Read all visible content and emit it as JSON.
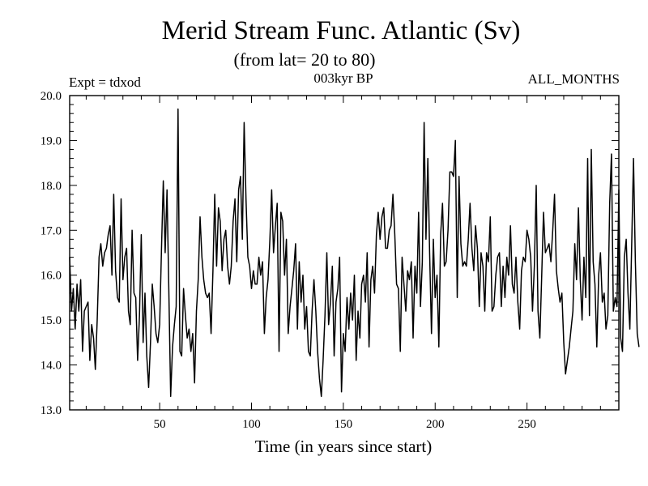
{
  "chart_data": {
    "type": "line",
    "title": "Merid Stream Func. Atlantic (Sv)",
    "subtitle": "(from lat= 20 to 80)",
    "annotations": {
      "left": "Expt = tdxod",
      "center": "003kyr BP",
      "right": "ALL_MONTHS"
    },
    "xlabel": "Time (in years since start)",
    "ylabel": "",
    "xlim": [
      1,
      300
    ],
    "ylim": [
      13.0,
      20.0
    ],
    "x_ticks": [
      50,
      100,
      150,
      200,
      250
    ],
    "y_ticks": [
      13.0,
      14.0,
      15.0,
      16.0,
      17.0,
      18.0,
      19.0,
      20.0
    ],
    "grid": false,
    "line_color": "#000000",
    "series": [
      {
        "x_start": 1,
        "x_step": 1,
        "values": [
          16.4,
          15.2,
          15.7,
          14.8,
          15.8,
          15.2,
          15.9,
          14.3,
          15.2,
          15.3,
          15.4,
          14.1,
          14.9,
          14.6,
          13.9,
          15.0,
          16.4,
          16.7,
          16.2,
          16.5,
          16.6,
          16.9,
          17.1,
          16.0,
          17.8,
          16.1,
          15.5,
          15.4,
          17.7,
          15.9,
          16.4,
          16.6,
          15.2,
          14.9,
          17.0,
          15.6,
          15.5,
          14.1,
          15.1,
          16.9,
          14.5,
          15.6,
          14.2,
          13.5,
          14.5,
          15.8,
          15.3,
          14.7,
          14.5,
          14.9,
          16.6,
          18.1,
          16.5,
          17.9,
          15.7,
          13.3,
          14.4,
          14.9,
          15.3,
          19.7,
          14.3,
          14.2,
          15.7,
          15.1,
          14.6,
          14.8,
          14.3,
          14.7,
          13.6,
          15.2,
          15.9,
          17.3,
          16.4,
          15.9,
          15.6,
          15.5,
          15.6,
          14.7,
          16.1,
          17.8,
          16.2,
          17.5,
          17.2,
          16.1,
          16.8,
          17.0,
          16.2,
          15.8,
          16.2,
          17.2,
          17.7,
          16.3,
          17.9,
          18.2,
          16.8,
          19.4,
          17.7,
          16.4,
          16.2,
          15.7,
          16.1,
          15.8,
          15.8,
          16.4,
          16.0,
          16.3,
          14.7,
          15.5,
          15.9,
          16.8,
          17.9,
          16.5,
          17.1,
          17.6,
          14.3,
          17.4,
          17.2,
          16.0,
          16.8,
          14.7,
          15.3,
          15.7,
          16.1,
          16.7,
          14.8,
          16.3,
          15.4,
          16.0,
          14.8,
          15.3,
          14.3,
          14.2,
          15.2,
          15.9,
          15.2,
          14.3,
          13.7,
          13.3,
          14.1,
          15.1,
          16.5,
          14.9,
          15.4,
          16.2,
          14.2,
          15.4,
          15.7,
          16.4,
          13.4,
          14.7,
          14.3,
          15.5,
          14.8,
          15.6,
          15.0,
          16.0,
          14.1,
          15.2,
          14.6,
          15.8,
          16.0,
          15.4,
          16.5,
          14.4,
          15.9,
          16.2,
          15.6,
          16.9,
          17.4,
          16.8,
          17.3,
          17.5,
          16.6,
          16.6,
          17.0,
          17.1,
          17.8,
          16.9,
          15.8,
          15.7,
          14.3,
          16.4,
          15.8,
          15.2,
          16.1,
          15.9,
          16.3,
          14.6,
          16.2,
          15.6,
          17.4,
          15.3,
          16.3,
          19.4,
          16.8,
          18.6,
          16.5,
          14.7,
          16.8,
          15.5,
          16.0,
          14.4,
          16.9,
          17.6,
          16.2,
          16.3,
          17.0,
          18.3,
          18.3,
          18.2,
          19.0,
          15.5,
          18.2,
          16.7,
          16.2,
          16.3,
          16.2,
          16.8,
          17.6,
          16.6,
          16.1,
          17.1,
          16.6,
          15.3,
          16.5,
          16.2,
          15.2,
          16.5,
          16.3,
          17.3,
          15.2,
          15.3,
          16.0,
          16.4,
          16.5,
          15.3,
          16.2,
          15.5,
          16.4,
          16.0,
          17.1,
          15.8,
          15.6,
          16.4,
          15.4,
          14.8,
          16.1,
          16.4,
          16.3,
          17.0,
          16.8,
          16.4,
          15.2,
          16.2,
          18.0,
          15.2,
          14.6,
          16.0,
          17.4,
          16.5,
          16.6,
          16.7,
          16.3,
          17.0,
          17.8,
          16.1,
          15.7,
          15.4,
          15.6,
          14.5,
          13.8,
          14.1,
          14.4,
          14.8,
          15.2,
          16.7,
          15.9,
          17.5,
          15.9,
          15.0,
          16.4,
          15.5,
          18.6,
          15.1,
          18.8,
          16.3,
          15.8,
          14.4,
          16.0,
          16.5,
          15.4,
          15.6,
          14.8,
          15.1,
          17.6,
          18.7,
          15.2,
          15.5,
          15.3,
          17.9,
          14.6,
          14.3,
          16.4,
          16.8,
          15.6,
          14.8,
          16.7,
          18.6,
          16.3,
          14.7,
          14.4
        ]
      }
    ]
  }
}
